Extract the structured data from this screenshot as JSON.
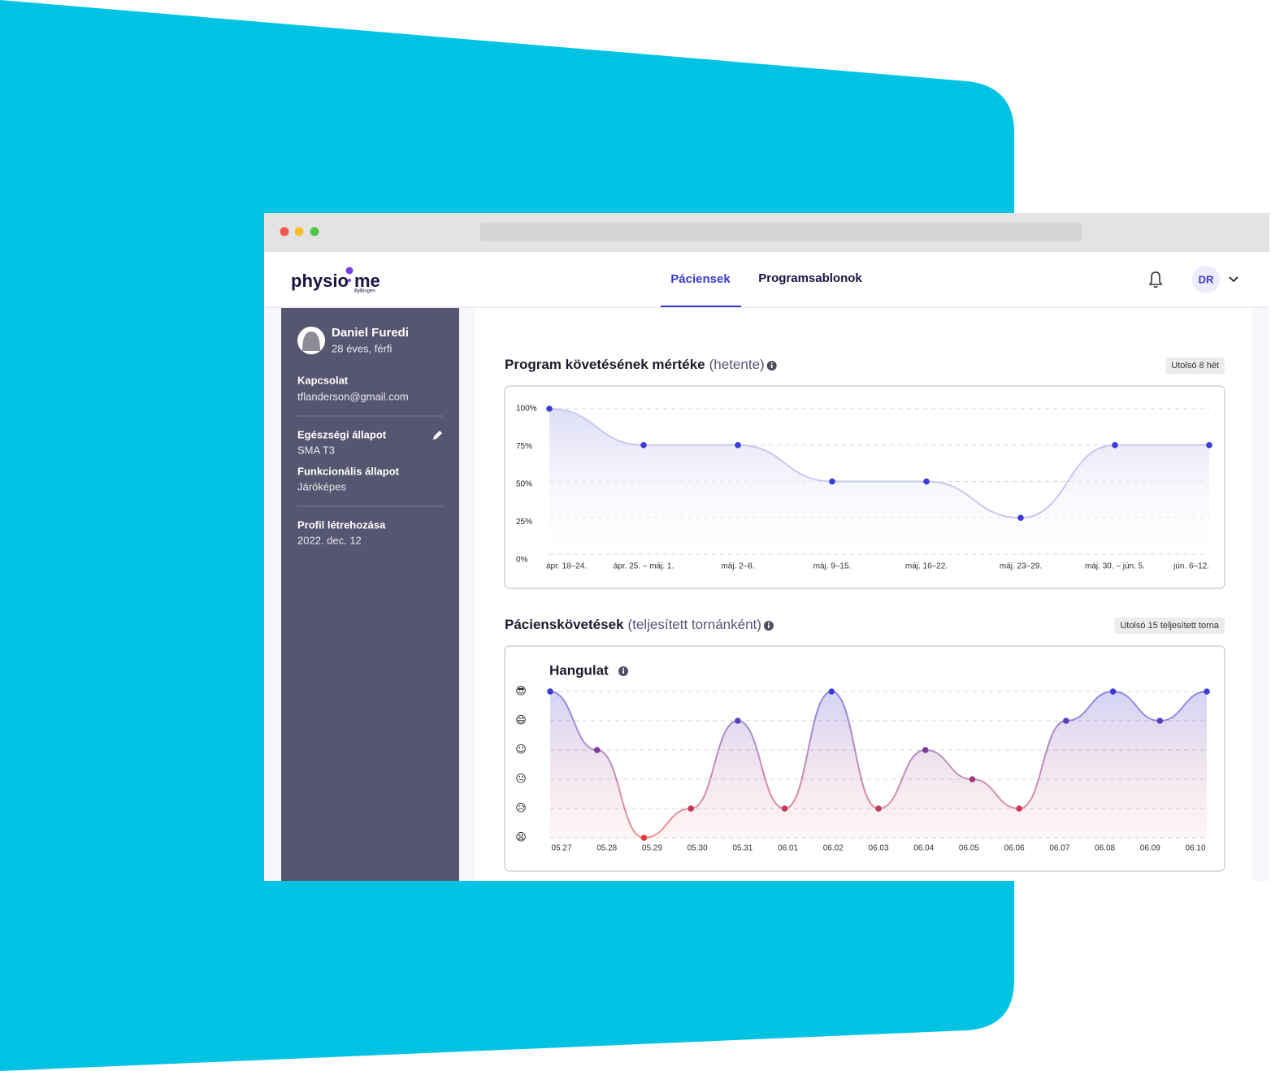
{
  "nav": {
    "logo_left": "physio",
    "logo_right": "me",
    "logo_tagline": "ByBiogen",
    "items": [
      "Páciensek",
      "Programsablonok"
    ],
    "avatar": "DR"
  },
  "patient": {
    "name": "Daniel Furedi",
    "details": "28 éves, férfi",
    "fields": [
      {
        "label": "Kapcsolat",
        "value": "tflanderson@gmail.com"
      },
      {
        "label": "Egészségi állapot",
        "value": "SMA T3"
      },
      {
        "label": "Funkcionális állapot",
        "value": "Járóképes"
      },
      {
        "label": "Profil létrehozása",
        "value": "2022. dec. 12"
      }
    ]
  },
  "chart_data": [
    {
      "type": "line",
      "title": "Program követésének mértéke",
      "subtitle": "(hetente)",
      "badge": "Utolsó 8 hét",
      "categories": [
        "ápr. 18–24.",
        "ápr. 25. – máj. 1.",
        "máj. 2–8.",
        "máj. 9–15.",
        "máj. 16–22.",
        "máj. 23–29.",
        "máj. 30. – jún. 5.",
        "jún. 6–12."
      ],
      "values": [
        100,
        75,
        75,
        50,
        50,
        25,
        75,
        75
      ],
      "color": "#3b3bd6",
      "line_color": "#c7c7ef",
      "ylim": [
        0,
        100
      ],
      "yticks": [
        {
          "value": 0,
          "label": "0%"
        },
        {
          "value": 25,
          "label": "25%"
        },
        {
          "value": 50,
          "label": "50%"
        },
        {
          "value": 75,
          "label": "75%"
        },
        {
          "value": 100,
          "label": "100%"
        }
      ],
      "grid": true
    },
    {
      "type": "line",
      "title": "Pácienskövetések",
      "subtitle": "(teljesített tornánként)",
      "badge": "Utolsó 15 teljesített torna",
      "panel_title": "Hangulat",
      "categories": [
        "05.27",
        "05.28",
        "05.29",
        "05.30",
        "05.31",
        "06.01",
        "06.02",
        "06.03",
        "06.04",
        "06.05",
        "06.06",
        "06.07",
        "06.08",
        "06.09",
        "06.10"
      ],
      "values": [
        6,
        4,
        1,
        2,
        5,
        2,
        6,
        2,
        4,
        3,
        2,
        5,
        6,
        5,
        6
      ],
      "color_top": "#3b3bd6",
      "color_bottom": "#e5383b",
      "ylim": [
        1,
        6
      ],
      "yticks": [
        {
          "value": 1,
          "label": "😫"
        },
        {
          "value": 2,
          "label": "😥"
        },
        {
          "value": 3,
          "label": "😐"
        },
        {
          "value": 4,
          "label": "☺"
        },
        {
          "value": 5,
          "label": "😄"
        },
        {
          "value": 6,
          "label": "😎"
        }
      ],
      "grid": true
    }
  ]
}
